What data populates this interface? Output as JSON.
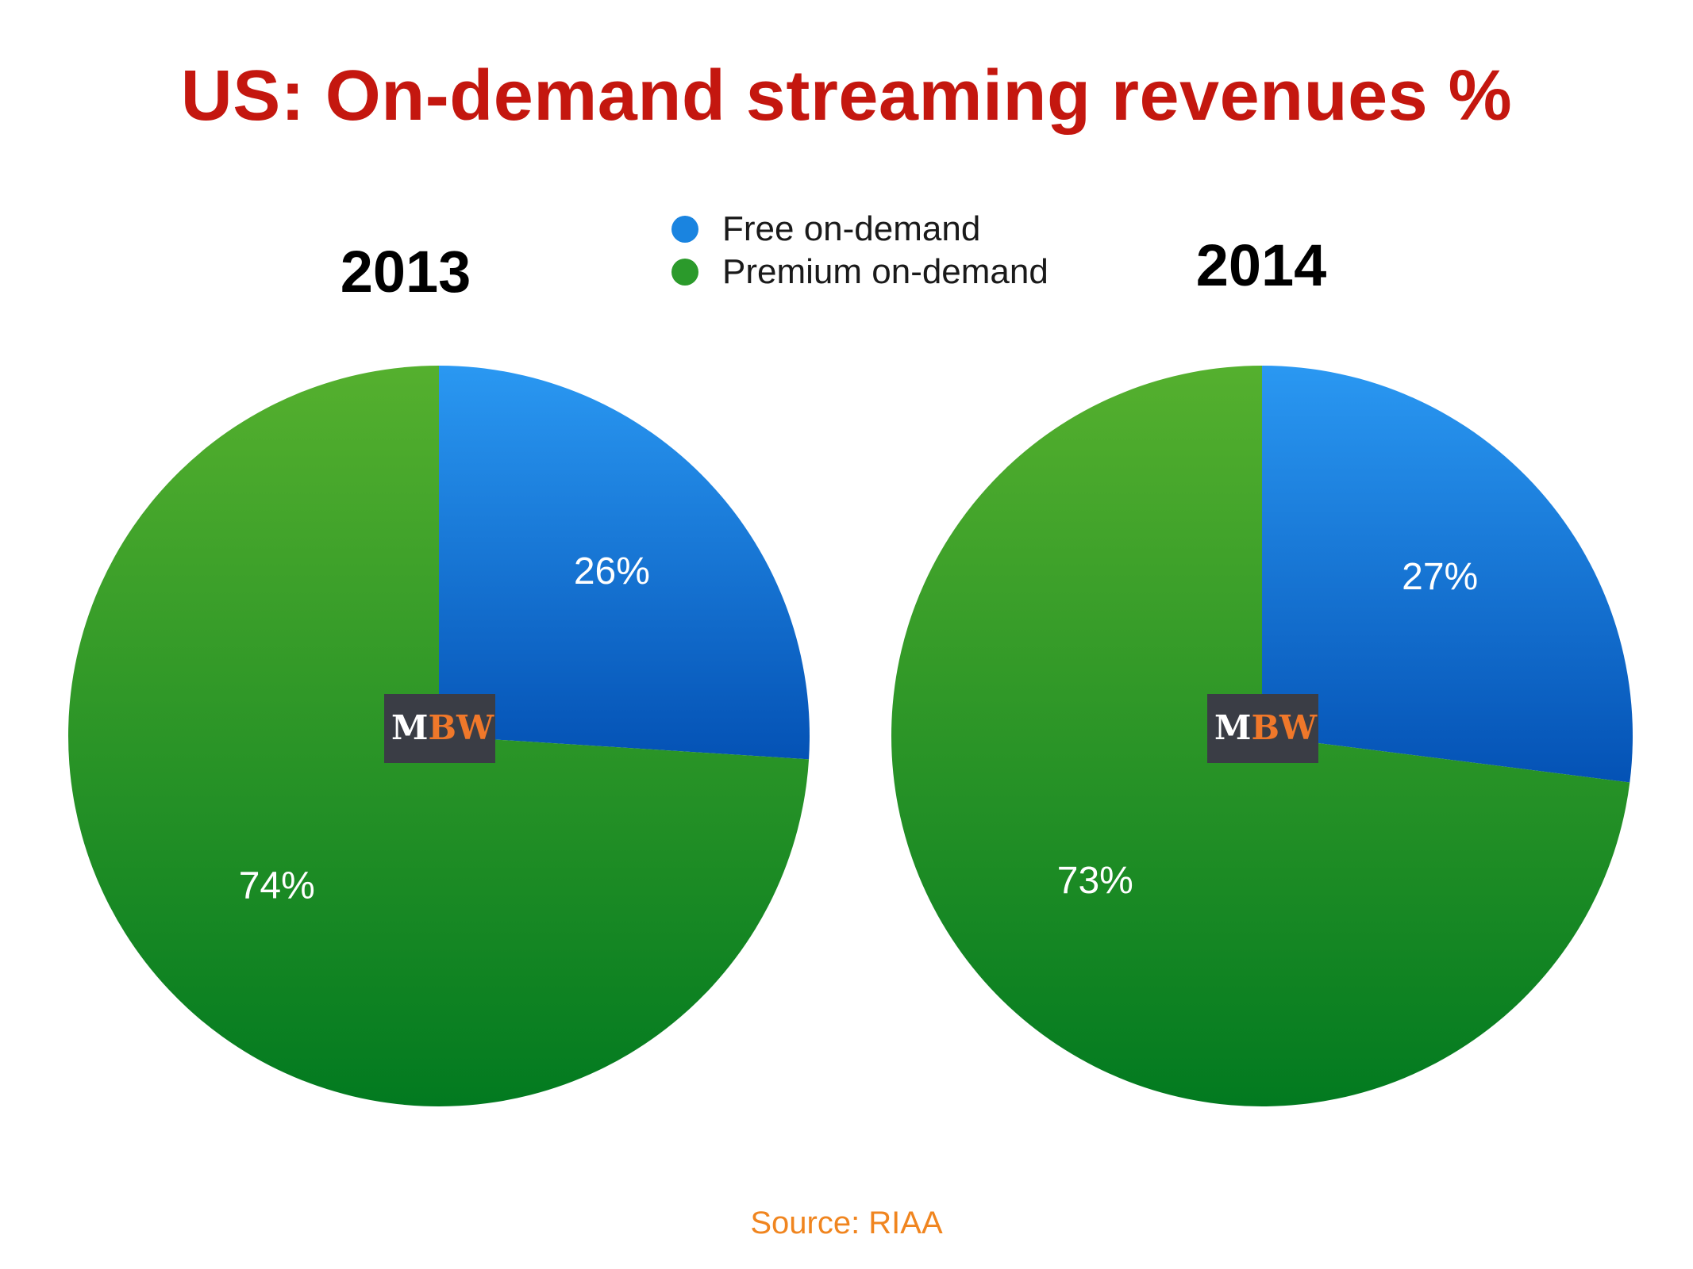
{
  "title": "US: On-demand streaming revenues %",
  "legend": [
    {
      "label": "Free on-demand",
      "color": "#1a84e0"
    },
    {
      "label": "Premium on-demand",
      "color": "#2b9a2b"
    }
  ],
  "logo": {
    "text_m": "M",
    "text_bw": "BW"
  },
  "source": "Source: RIAA",
  "chart_data": [
    {
      "type": "pie",
      "title": "2013",
      "categories": [
        "Free on-demand",
        "Premium on-demand"
      ],
      "values": [
        26,
        74
      ],
      "labels": [
        "26%",
        "74%"
      ],
      "legend_position": "top-center"
    },
    {
      "type": "pie",
      "title": "2014",
      "categories": [
        "Free on-demand",
        "Premium on-demand"
      ],
      "values": [
        27,
        73
      ],
      "labels": [
        "27%",
        "73%"
      ],
      "legend_position": "top-center"
    }
  ]
}
